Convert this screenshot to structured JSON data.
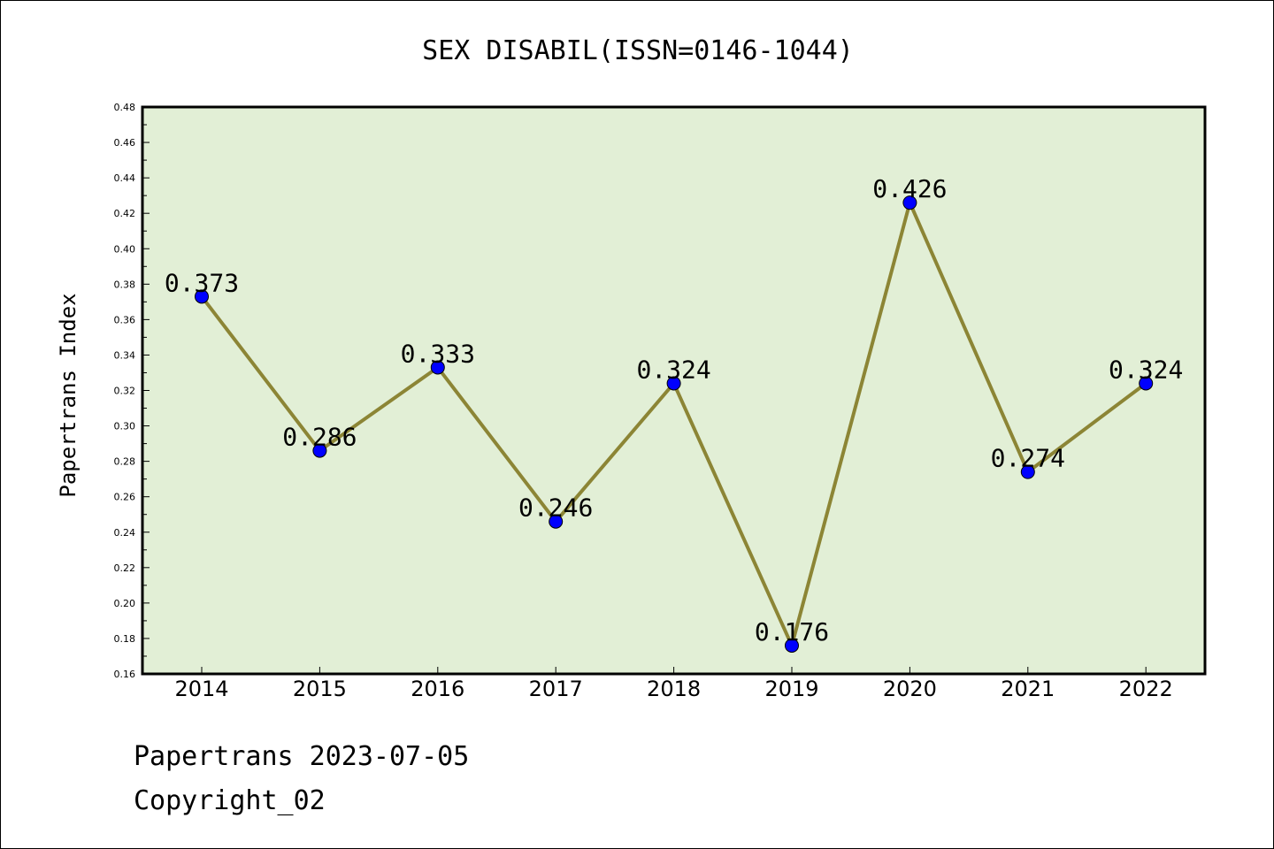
{
  "chart_data": {
    "type": "line",
    "title": "SEX DISABIL(ISSN=0146-1044)",
    "xlabel": "",
    "ylabel": "Papertrans Index",
    "categories": [
      "2014",
      "2015",
      "2016",
      "2017",
      "2018",
      "2019",
      "2020",
      "2021",
      "2022"
    ],
    "series": [
      {
        "name": "Papertrans Index",
        "values": [
          0.373,
          0.286,
          0.333,
          0.246,
          0.324,
          0.176,
          0.426,
          0.274,
          0.324
        ],
        "data_labels": [
          "0.373",
          "0.286",
          "0.333",
          "0.246",
          "0.324",
          "0.176",
          "0.426",
          "0.274",
          "0.324"
        ]
      }
    ],
    "ylim": [
      0.16,
      0.48
    ],
    "yticks": [
      "0.16",
      "0.18",
      "0.20",
      "0.22",
      "0.24",
      "0.26",
      "0.28",
      "0.30",
      "0.32",
      "0.34",
      "0.36",
      "0.38",
      "0.40",
      "0.42",
      "0.44",
      "0.46",
      "0.48"
    ],
    "grid": false,
    "legend": "none"
  },
  "colors": {
    "plot_background": "#e2efd6",
    "line": "#8c8535",
    "marker": "#0000ff",
    "axis": "#000000",
    "text": "#000000"
  },
  "footer": {
    "line1": "Papertrans 2023-07-05",
    "line2": "Copyright_02"
  }
}
